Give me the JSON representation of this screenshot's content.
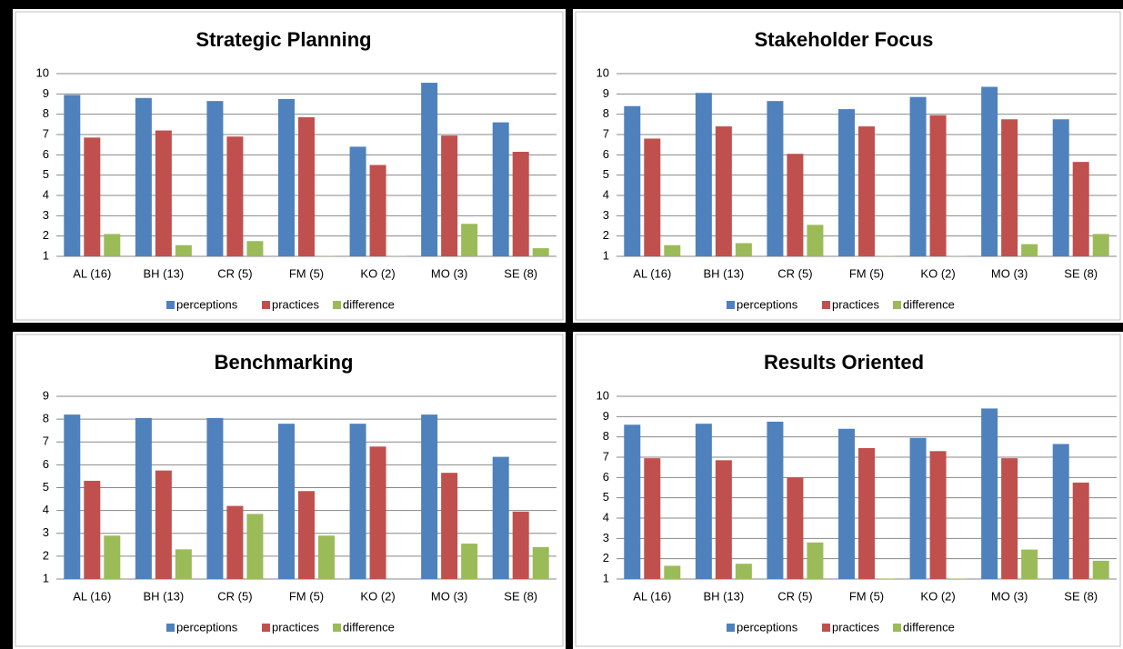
{
  "chart_data": [
    {
      "type": "bar",
      "title": "Strategic Planning",
      "categories": [
        "AL (16)",
        "BH (13)",
        "CR (5)",
        "FM (5)",
        "KO (2)",
        "MO (3)",
        "SE (8)"
      ],
      "series": [
        {
          "name": "perceptions",
          "color": "#4f81bd",
          "values": [
            8.95,
            8.8,
            8.65,
            8.75,
            6.4,
            9.55,
            7.6
          ]
        },
        {
          "name": "practices",
          "color": "#c0504d",
          "values": [
            6.85,
            7.2,
            6.9,
            7.85,
            5.5,
            6.95,
            6.15
          ]
        },
        {
          "name": "difference",
          "color": "#9bbb59",
          "values": [
            2.1,
            1.55,
            1.75,
            1.02,
            1.02,
            2.6,
            1.4
          ]
        }
      ],
      "ylim": [
        1,
        10
      ],
      "yticks": [
        1,
        2,
        3,
        4,
        5,
        6,
        7,
        8,
        9,
        10
      ],
      "grid": true,
      "legend": "bottom"
    },
    {
      "type": "bar",
      "title": "Stakeholder Focus",
      "categories": [
        "AL (16)",
        "BH (13)",
        "CR (5)",
        "FM (5)",
        "KO (2)",
        "MO (3)",
        "SE (8)"
      ],
      "series": [
        {
          "name": "perceptions",
          "color": "#4f81bd",
          "values": [
            8.4,
            9.05,
            8.65,
            8.25,
            8.85,
            9.35,
            7.75
          ]
        },
        {
          "name": "practices",
          "color": "#c0504d",
          "values": [
            6.8,
            7.4,
            6.05,
            7.4,
            7.95,
            7.75,
            5.65
          ]
        },
        {
          "name": "difference",
          "color": "#9bbb59",
          "values": [
            1.55,
            1.65,
            2.55,
            1.02,
            1.02,
            1.6,
            2.1
          ]
        }
      ],
      "ylim": [
        1,
        10
      ],
      "yticks": [
        1,
        2,
        3,
        4,
        5,
        6,
        7,
        8,
        9,
        10
      ],
      "grid": true,
      "legend": "bottom"
    },
    {
      "type": "bar",
      "title": "Benchmarking",
      "categories": [
        "AL (16)",
        "BH (13)",
        "CR (5)",
        "FM (5)",
        "KO (2)",
        "MO (3)",
        "SE (8)"
      ],
      "series": [
        {
          "name": "perceptions",
          "color": "#4f81bd",
          "values": [
            8.2,
            8.05,
            8.05,
            7.8,
            7.8,
            8.2,
            6.35
          ]
        },
        {
          "name": "practices",
          "color": "#c0504d",
          "values": [
            5.3,
            5.75,
            4.2,
            4.85,
            6.8,
            5.65,
            3.95
          ]
        },
        {
          "name": "difference",
          "color": "#9bbb59",
          "values": [
            2.9,
            2.3,
            3.85,
            2.9,
            1,
            2.55,
            2.4
          ]
        }
      ],
      "ylim": [
        1,
        9
      ],
      "yticks": [
        1,
        2,
        3,
        4,
        5,
        6,
        7,
        8,
        9
      ],
      "grid": true,
      "legend": "bottom"
    },
    {
      "type": "bar",
      "title": "Results Oriented",
      "categories": [
        "AL (16)",
        "BH (13)",
        "CR (5)",
        "FM (5)",
        "KO (2)",
        "MO (3)",
        "SE (8)"
      ],
      "series": [
        {
          "name": "perceptions",
          "color": "#4f81bd",
          "values": [
            8.6,
            8.65,
            8.75,
            8.4,
            7.95,
            9.4,
            7.65
          ]
        },
        {
          "name": "practices",
          "color": "#c0504d",
          "values": [
            6.95,
            6.85,
            6.0,
            7.45,
            7.3,
            6.95,
            5.75
          ]
        },
        {
          "name": "difference",
          "color": "#9bbb59",
          "values": [
            1.65,
            1.75,
            2.8,
            1.02,
            1.02,
            2.45,
            1.9
          ]
        }
      ],
      "ylim": [
        1,
        10
      ],
      "yticks": [
        1,
        2,
        3,
        4,
        5,
        6,
        7,
        8,
        9,
        10
      ],
      "grid": true,
      "legend": "bottom"
    }
  ]
}
